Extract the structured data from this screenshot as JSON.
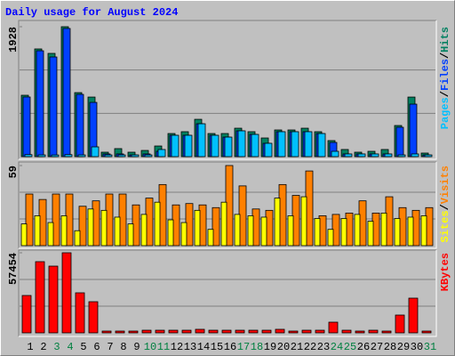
{
  "chart_data": {
    "type": "bar",
    "title": "Daily usage for August 2024",
    "categories": [
      "1",
      "2",
      "3",
      "4",
      "5",
      "6",
      "7",
      "8",
      "9",
      "10",
      "11",
      "12",
      "13",
      "14",
      "15",
      "16",
      "17",
      "18",
      "19",
      "20",
      "21",
      "22",
      "23",
      "24",
      "25",
      "26",
      "27",
      "28",
      "29",
      "30",
      "31"
    ],
    "category_colors": [
      "#000000",
      "#000000",
      "#008040",
      "#008040",
      "#000000",
      "#000000",
      "#000000",
      "#000000",
      "#000000",
      "#008040",
      "#008040",
      "#000000",
      "#000000",
      "#000000",
      "#000000",
      "#000000",
      "#008040",
      "#008040",
      "#000000",
      "#000000",
      "#000000",
      "#000000",
      "#000000",
      "#008040",
      "#008040",
      "#000000",
      "#000000",
      "#000000",
      "#000000",
      "#000000",
      "#008040"
    ],
    "legend_separator": "/",
    "grid": true,
    "panels": [
      {
        "ylim": [
          0,
          1928
        ],
        "yticks": [
          1928
        ],
        "series": [
          {
            "name": "Hits",
            "color": "#008060",
            "values": [
              911,
              1598,
              1532,
              1928,
              950,
              884,
              66,
              119,
              66,
              92,
              158,
              343,
              370,
              554,
              343,
              343,
              422,
              370,
              277,
              396,
              396,
              422,
              370,
              238,
              106,
              66,
              79,
              106,
              462,
              884,
              53
            ]
          },
          {
            "name": "Files",
            "color": "#0040ff",
            "values": [
              885,
              1571,
              1479,
              1902,
              924,
              805,
              40,
              40,
              26,
              40,
              79,
              317,
              317,
              488,
              317,
              290,
              383,
              330,
              198,
              370,
              370,
              370,
              343,
              211,
              40,
              40,
              40,
              40,
              436,
              779,
              26
            ]
          },
          {
            "name": "Pages",
            "color": "#00c0ff",
            "values": [
              30,
              26,
              25,
              30,
              26,
              145,
              26,
              26,
              26,
              26,
              106,
              317,
              317,
              488,
              317,
              290,
              383,
              330,
              198,
              370,
              370,
              370,
              343,
              79,
              40,
              40,
              40,
              40,
              26,
              40,
              26
            ]
          }
        ]
      },
      {
        "ylim": [
          0,
          59
        ],
        "yticks": [
          59
        ],
        "series": [
          {
            "name": "Visits",
            "color": "#ff8000",
            "values": [
              38,
              34,
              38,
              38,
              29,
              33,
              38,
              38,
              30,
              35,
              45,
              30,
              31,
              30,
              28,
              59,
              44,
              27,
              26,
              45,
              37,
              55,
              22,
              23,
              24,
              33,
              24,
              36,
              28,
              26,
              28
            ]
          },
          {
            "name": "Sites",
            "color": "#ffff00",
            "values": [
              16,
              22,
              17,
              22,
              11,
              27,
              26,
              21,
              16,
              23,
              32,
              19,
              17,
              26,
              12,
              32,
              23,
              22,
              21,
              35,
              22,
              36,
              20,
              12,
              20,
              23,
              18,
              24,
              20,
              21,
              22
            ]
          }
        ]
      },
      {
        "ylim": [
          0,
          57454
        ],
        "yticks": [
          57454
        ],
        "series": [
          {
            "name": "KBytes",
            "color": "#ff0000",
            "values": [
              26810,
              51067,
              47870,
              57454,
              28725,
              22342,
              1277,
              1277,
              1277,
              1900,
              1900,
              1900,
              1900,
              2553,
              1900,
              1900,
              1900,
              1900,
              1900,
              2553,
              1277,
              1900,
              1900,
              7660,
              1900,
              1277,
              1900,
              1277,
              12767,
              24900,
              1277
            ]
          }
        ]
      }
    ]
  }
}
